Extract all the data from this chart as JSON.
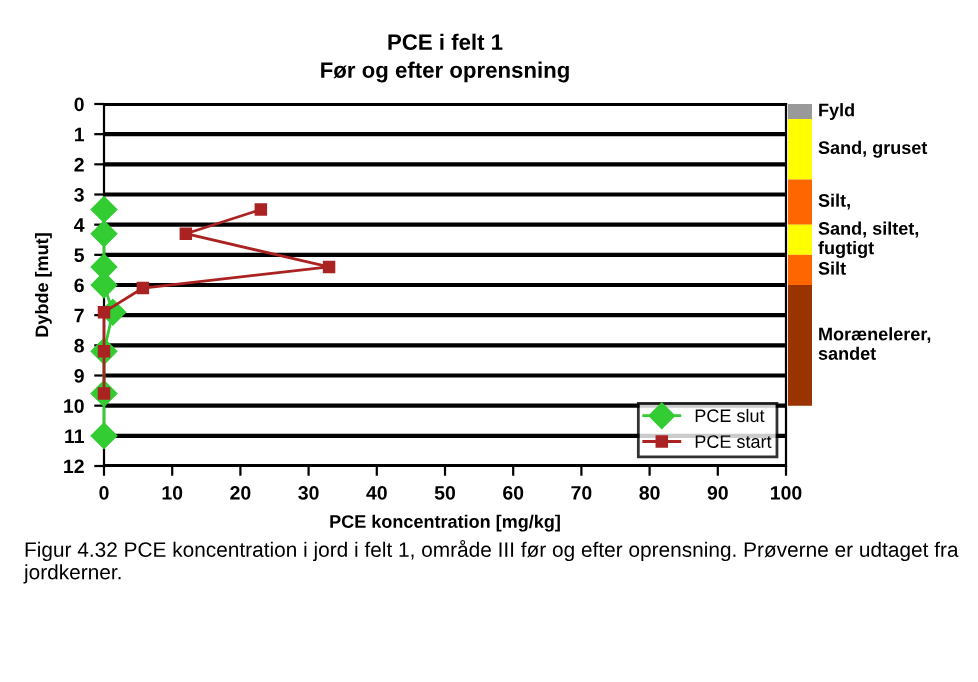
{
  "chart_data": [
    {
      "type": "line",
      "title": "PCE i felt 1",
      "subtitle": "Før og efter oprensning",
      "xlabel": "PCE koncentration [mg/kg]",
      "ylabel": "Dybde [mut]",
      "series": [
        {
          "name": "PCE slut",
          "color": "#33cc33",
          "marker": "diamond",
          "x": [
            0,
            0,
            0,
            0,
            1.3,
            0,
            0,
            0
          ],
          "values": [
            3.5,
            4.3,
            5.4,
            6.0,
            6.9,
            8.2,
            9.6,
            11.0
          ]
        },
        {
          "name": "PCE start",
          "color": "#aa2222",
          "marker": "square",
          "x": [
            23,
            12,
            33,
            5.7,
            0,
            0,
            0
          ],
          "values": [
            3.5,
            4.3,
            5.4,
            6.1,
            6.9,
            8.2,
            9.6
          ]
        }
      ],
      "xlim": [
        0,
        100
      ],
      "xticks": [
        0,
        10,
        20,
        30,
        40,
        50,
        60,
        70,
        80,
        90,
        100
      ],
      "ylim": [
        12,
        0
      ],
      "yticks": [
        0,
        1,
        2,
        3,
        4,
        5,
        6,
        7,
        8,
        9,
        10,
        11,
        12
      ],
      "grid": "y",
      "legend": "bottom right",
      "annotations": [
        "Figur 4.32 PCE koncentration i jord i felt 1, område III før og efter oprensning. Prøverne er udtaget fra jordkerner."
      ]
    },
    {
      "type": "bar",
      "stacked": true,
      "categories": [
        null
      ],
      "ylim": [
        12,
        0
      ],
      "tick_labels": false,
      "series": [
        {
          "name": "Fyld",
          "color": "#999999",
          "values": [
            0.5
          ]
        },
        {
          "name": "Sand, gruset",
          "color": "#ffff00",
          "values": [
            2
          ]
        },
        {
          "name": "Silt,",
          "color": "#ff6600",
          "values": [
            1.5
          ]
        },
        {
          "name": "Sand, siltet, fugtigt",
          "color": "#ffff00",
          "values": [
            1
          ]
        },
        {
          "name": "Silt",
          "color": "#ff6600",
          "values": [
            1
          ]
        },
        {
          "name": "Morænelerer, sandet",
          "color": "#993300",
          "values": [
            4
          ]
        }
      ]
    }
  ]
}
